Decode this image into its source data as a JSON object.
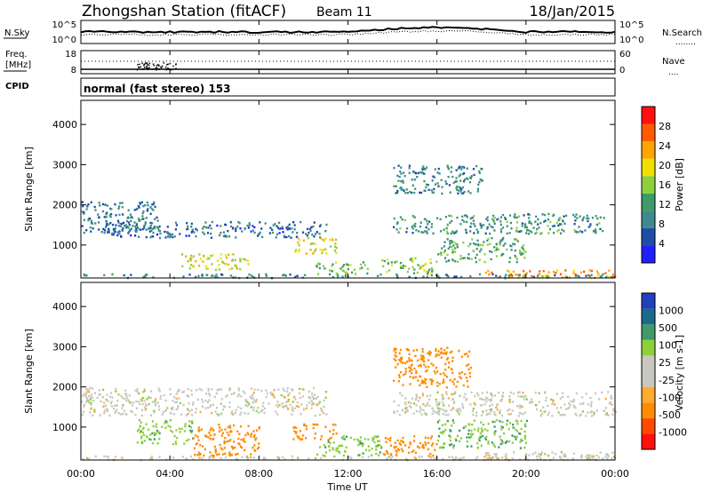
{
  "header": {
    "station": "Zhongshan Station (fitACF)",
    "beam": "Beam 11",
    "date": "18/Jan/2015"
  },
  "noise_panel": {
    "left_label": "N.Sky",
    "left_ticks": [
      "10^5",
      "10^0"
    ],
    "right_ticks": [
      "10^5",
      "10^0"
    ],
    "right_label": "N.Search",
    "right_legend_line": "........"
  },
  "freq_panel": {
    "left_label_1": "Freq.",
    "left_label_2": "[MHz]",
    "left_ticks": [
      "18",
      "8"
    ],
    "right_ticks": [
      "60",
      "0"
    ],
    "right_label": "Nave",
    "right_legend_line": "....",
    "cpid_label": "CPID",
    "cpid_text": "normal (fast stereo) 153"
  },
  "colors": {
    "power_scale": [
      "#2020ff",
      "#1c4ea8",
      "#3f8a8e",
      "#3f9a6a",
      "#8cd03c",
      "#f0e000",
      "#ffa500",
      "#ff5a00",
      "#ff1010"
    ],
    "velocity_scale": [
      "#ff1010",
      "#ff4a00",
      "#ff8c00",
      "#ffaa30",
      "#c8c8c0",
      "#c8c8c0",
      "#8cd03c",
      "#3f9a6a",
      "#1c6a8a",
      "#2040c0"
    ]
  },
  "chart_data": [
    {
      "type": "heatmap",
      "title": "",
      "quantity": "Power",
      "ylabel": "Slant Range [km]",
      "ylim": [
        180,
        4600
      ],
      "yticks": [
        "1000",
        "2000",
        "3000",
        "4000"
      ],
      "xlabel": "",
      "xlim_hours": [
        0,
        24
      ],
      "colorbar": {
        "label": "Power [dB]",
        "ticks": [
          "4",
          "8",
          "12",
          "16",
          "20",
          "24",
          "28"
        ],
        "range": [
          0,
          32
        ]
      },
      "regions": [
        {
          "start": "00:00",
          "end": "24:00",
          "range_km": [
            200,
            300
          ],
          "value_db": 10
        },
        {
          "start": "00:00",
          "end": "03:30",
          "range_km": [
            1300,
            2100
          ],
          "value_db": 9
        },
        {
          "start": "01:00",
          "end": "11:00",
          "range_km": [
            1200,
            1600
          ],
          "value_db": 8
        },
        {
          "start": "04:30",
          "end": "07:30",
          "range_km": [
            400,
            800
          ],
          "value_db": 21
        },
        {
          "start": "09:30",
          "end": "11:30",
          "range_km": [
            800,
            1200
          ],
          "value_db": 22
        },
        {
          "start": "10:30",
          "end": "13:00",
          "range_km": [
            300,
            600
          ],
          "value_db": 16
        },
        {
          "start": "13:30",
          "end": "16:00",
          "range_km": [
            300,
            700
          ],
          "value_db": 18
        },
        {
          "start": "14:00",
          "end": "18:00",
          "range_km": [
            2300,
            3000
          ],
          "value_db": 10
        },
        {
          "start": "14:00",
          "end": "23:30",
          "range_km": [
            1300,
            1800
          ],
          "value_db": 12
        },
        {
          "start": "16:00",
          "end": "20:00",
          "range_km": [
            600,
            1200
          ],
          "value_db": 14
        },
        {
          "start": "18:00",
          "end": "24:00",
          "range_km": [
            200,
            400
          ],
          "value_db": 26
        }
      ]
    },
    {
      "type": "heatmap",
      "title": "",
      "quantity": "Velocity",
      "ylabel": "Slant Range [km]",
      "ylim": [
        180,
        4600
      ],
      "yticks": [
        "1000",
        "2000",
        "3000",
        "4000"
      ],
      "xlabel": "Time UT",
      "xticks": [
        "00:00",
        "04:00",
        "08:00",
        "12:00",
        "16:00",
        "20:00",
        "00:00"
      ],
      "colorbar": {
        "label": "Velocity [m s-1]",
        "ticks": [
          "-1000",
          "-500",
          "-100",
          "-25",
          "25",
          "100",
          "500",
          "1000"
        ]
      },
      "regions": [
        {
          "start": "00:00",
          "end": "24:00",
          "range_km": [
            200,
            300
          ],
          "value_ms": 0
        },
        {
          "start": "00:00",
          "end": "11:00",
          "range_km": [
            1300,
            2000
          ],
          "value_ms": 0
        },
        {
          "start": "02:30",
          "end": "05:00",
          "range_km": [
            600,
            1200
          ],
          "value_ms": 80
        },
        {
          "start": "05:00",
          "end": "08:00",
          "range_km": [
            300,
            1100
          ],
          "value_ms": -200
        },
        {
          "start": "09:30",
          "end": "11:30",
          "range_km": [
            700,
            1100
          ],
          "value_ms": -150
        },
        {
          "start": "10:30",
          "end": "13:30",
          "range_km": [
            300,
            800
          ],
          "value_ms": 80
        },
        {
          "start": "13:30",
          "end": "16:00",
          "range_km": [
            300,
            800
          ],
          "value_ms": -200
        },
        {
          "start": "14:00",
          "end": "17:30",
          "range_km": [
            2000,
            3000
          ],
          "value_ms": -200
        },
        {
          "start": "14:00",
          "end": "24:00",
          "range_km": [
            1300,
            1900
          ],
          "value_ms": 0
        },
        {
          "start": "16:00",
          "end": "20:00",
          "range_km": [
            500,
            1200
          ],
          "value_ms": 90
        },
        {
          "start": "18:00",
          "end": "24:00",
          "range_km": [
            200,
            400
          ],
          "value_ms": 0
        }
      ]
    }
  ]
}
